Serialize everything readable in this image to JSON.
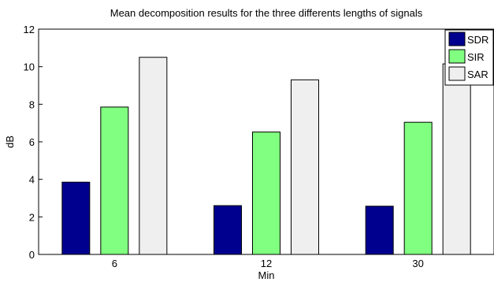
{
  "chart_data": {
    "type": "bar",
    "title": "Mean decomposition results for the three differents lengths of signals",
    "xlabel": "Min",
    "ylabel": "dB",
    "categories": [
      "6",
      "12",
      "30"
    ],
    "series": [
      {
        "name": "SDR",
        "values": [
          3.85,
          2.6,
          2.57
        ],
        "color": "#00008f"
      },
      {
        "name": "SIR",
        "values": [
          7.85,
          6.52,
          7.04
        ],
        "color": "#80ff80"
      },
      {
        "name": "SAR",
        "values": [
          10.5,
          9.3,
          10.15
        ],
        "color": "#efefef"
      }
    ],
    "ylim": [
      0,
      12
    ],
    "yticks": [
      0,
      2,
      4,
      6,
      8,
      10,
      12
    ],
    "grid": false,
    "legend_position": "top-right"
  }
}
